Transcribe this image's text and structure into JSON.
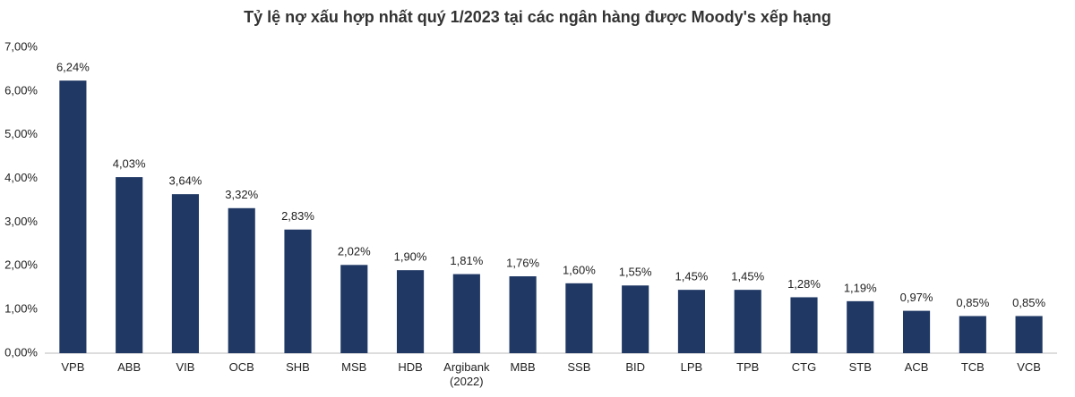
{
  "chart_data": {
    "type": "bar",
    "title": "Tỷ lệ nợ xấu hợp nhất quý 1/2023 tại các ngân hàng được Moody's xếp hạng",
    "categories": [
      "VPB",
      "ABB",
      "VIB",
      "OCB",
      "SHB",
      "MSB",
      "HDB",
      "Argibank (2022)",
      "MBB",
      "SSB",
      "BID",
      "LPB",
      "TPB",
      "CTG",
      "STB",
      "ACB",
      "TCB",
      "VCB"
    ],
    "values": [
      6.24,
      4.03,
      3.64,
      3.32,
      2.83,
      2.02,
      1.9,
      1.81,
      1.76,
      1.6,
      1.55,
      1.45,
      1.45,
      1.28,
      1.19,
      0.97,
      0.85,
      0.85
    ],
    "value_labels": [
      "6,24%",
      "4,03%",
      "3,64%",
      "3,32%",
      "2,83%",
      "2,02%",
      "1,90%",
      "1,81%",
      "1,76%",
      "1,60%",
      "1,55%",
      "1,45%",
      "1,45%",
      "1,28%",
      "1,19%",
      "0,97%",
      "0,85%",
      "0,85%"
    ],
    "color": "#1f3864",
    "ylim": [
      0,
      7
    ],
    "yticks": [
      {
        "value": 0,
        "label": "0,00%"
      },
      {
        "value": 1,
        "label": "1,00%"
      },
      {
        "value": 2,
        "label": "2,00%"
      },
      {
        "value": 3,
        "label": "3,00%"
      },
      {
        "value": 4,
        "label": "4,00%"
      },
      {
        "value": 5,
        "label": "5,00%"
      },
      {
        "value": 6,
        "label": "6,00%"
      },
      {
        "value": 7,
        "label": "7,00%"
      }
    ],
    "grid": false
  }
}
